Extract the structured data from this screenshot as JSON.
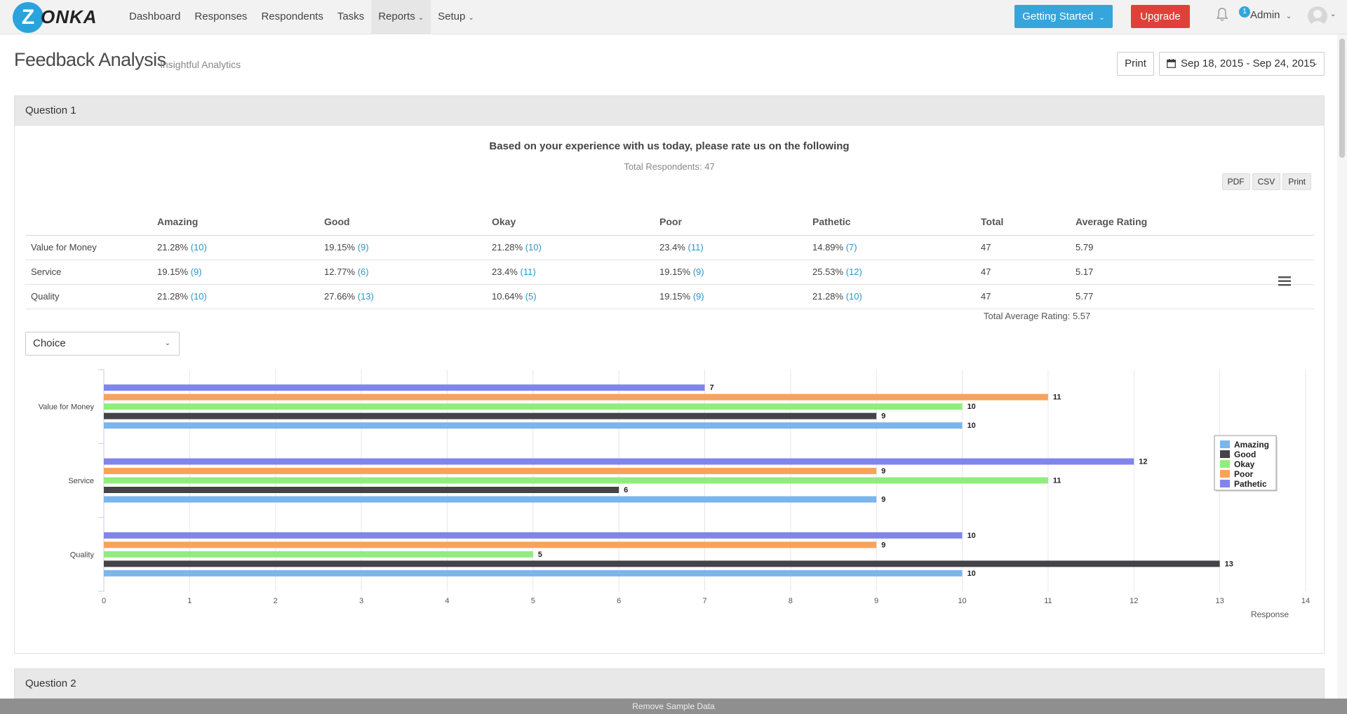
{
  "logo": {
    "mark": "Z",
    "text": "ONKA"
  },
  "nav": [
    {
      "label": "Dashboard"
    },
    {
      "label": "Responses"
    },
    {
      "label": "Respondents"
    },
    {
      "label": "Tasks"
    },
    {
      "label": "Reports",
      "dropdown": true,
      "active": true
    },
    {
      "label": "Setup",
      "dropdown": true
    }
  ],
  "header_actions": {
    "getting_started": "Getting Started",
    "upgrade": "Upgrade",
    "notification_count": "1",
    "user": "Admin"
  },
  "page": {
    "title": "Feedback Analysis",
    "subtitle": "Insightful Analytics",
    "print": "Print",
    "date_range": "Sep 18, 2015 - Sep 24, 2015"
  },
  "question1": {
    "heading": "Question 1",
    "text": "Based on your experience with us today, please rate us on the following",
    "respondents": "Total Respondents: 47",
    "export": [
      "PDF",
      "CSV",
      "Print"
    ],
    "columns": [
      "",
      "Amazing",
      "Good",
      "Okay",
      "Poor",
      "Pathetic",
      "Total",
      "Average Rating"
    ],
    "rows": [
      {
        "label": "Value for Money",
        "cells": [
          [
            "21.28%",
            "(10)"
          ],
          [
            "19.15%",
            "(9)"
          ],
          [
            "21.28%",
            "(10)"
          ],
          [
            "23.4%",
            "(11)"
          ],
          [
            "14.89%",
            "(7)"
          ]
        ],
        "total": "47",
        "avg": "5.79"
      },
      {
        "label": "Service",
        "cells": [
          [
            "19.15%",
            "(9)"
          ],
          [
            "12.77%",
            "(6)"
          ],
          [
            "23.4%",
            "(11)"
          ],
          [
            "19.15%",
            "(9)"
          ],
          [
            "25.53%",
            "(12)"
          ]
        ],
        "total": "47",
        "avg": "5.17"
      },
      {
        "label": "Quality",
        "cells": [
          [
            "21.28%",
            "(10)"
          ],
          [
            "27.66%",
            "(13)"
          ],
          [
            "10.64%",
            "(5)"
          ],
          [
            "19.15%",
            "(9)"
          ],
          [
            "21.28%",
            "(10)"
          ]
        ],
        "total": "47",
        "avg": "5.77"
      }
    ],
    "total_average": "Total Average Rating: 5.57",
    "chart_type_select": "Choice"
  },
  "chart_data": {
    "type": "bar",
    "orientation": "horizontal",
    "categories": [
      "Value for Money",
      "Service",
      "Quality"
    ],
    "series": [
      {
        "name": "Amazing",
        "values": [
          10,
          9,
          10
        ],
        "color": "#7cb5ec"
      },
      {
        "name": "Good",
        "values": [
          9,
          6,
          13
        ],
        "color": "#434348"
      },
      {
        "name": "Okay",
        "values": [
          10,
          11,
          5
        ],
        "color": "#90ed7d"
      },
      {
        "name": "Poor",
        "values": [
          11,
          9,
          9
        ],
        "color": "#f7a35c"
      },
      {
        "name": "Pathetic",
        "values": [
          7,
          12,
          10
        ],
        "color": "#8085e9"
      }
    ],
    "xlabel": "Response",
    "xlim": [
      0,
      14
    ],
    "xticks": [
      "0",
      "1",
      "2",
      "3",
      "4",
      "5",
      "6",
      "7",
      "8",
      "9",
      "10",
      "11",
      "12",
      "13",
      "14"
    ],
    "grid": true,
    "legend": "right"
  },
  "question2": {
    "heading": "Question 2"
  },
  "footer": {
    "remove_sample": "Remove Sample Data"
  }
}
